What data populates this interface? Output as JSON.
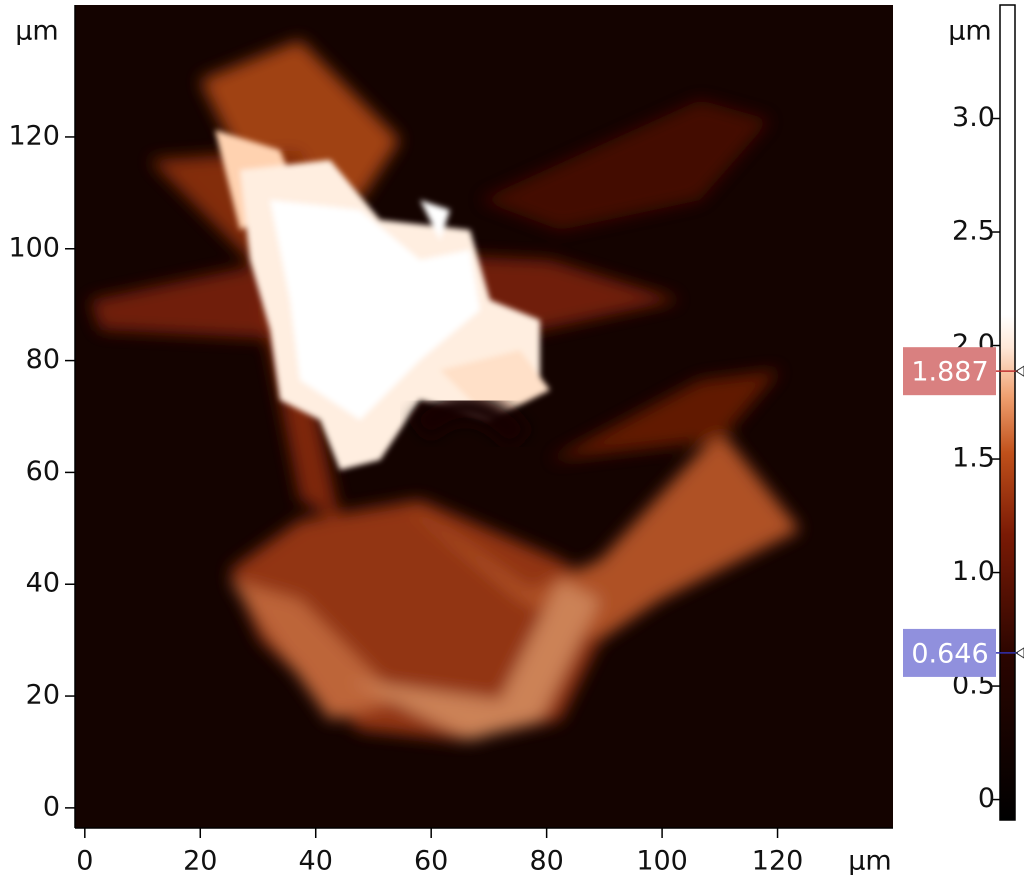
{
  "image": {
    "x_axis": {
      "unit": "µm",
      "range": [
        -1.7,
        140
      ],
      "ticks": [
        0,
        20,
        40,
        60,
        80,
        100,
        120
      ]
    },
    "y_axis": {
      "unit": "µm",
      "range": [
        -3.6,
        143.6
      ],
      "ticks": [
        0,
        20,
        40,
        60,
        80,
        100,
        120
      ]
    },
    "colorbar": {
      "unit": "µm",
      "range": [
        -0.09,
        3.5
      ],
      "ticks": [
        0,
        {
          "value": 0.5,
          "label": "0.5"
        },
        {
          "value": 1,
          "label": "1.0"
        },
        {
          "value": 1.5,
          "label": "1.5"
        },
        {
          "value": 2,
          "label": "2.0"
        },
        {
          "value": 2.5,
          "label": "2.5"
        },
        {
          "value": 3,
          "label": "3.0"
        }
      ],
      "markers": [
        {
          "value": 1.887,
          "label": "1.887",
          "color": "#d98080",
          "line": "#c03030"
        },
        {
          "value": 0.646,
          "label": "0.646",
          "color": "#9090dd",
          "line": "#3030b0"
        }
      ]
    }
  }
}
